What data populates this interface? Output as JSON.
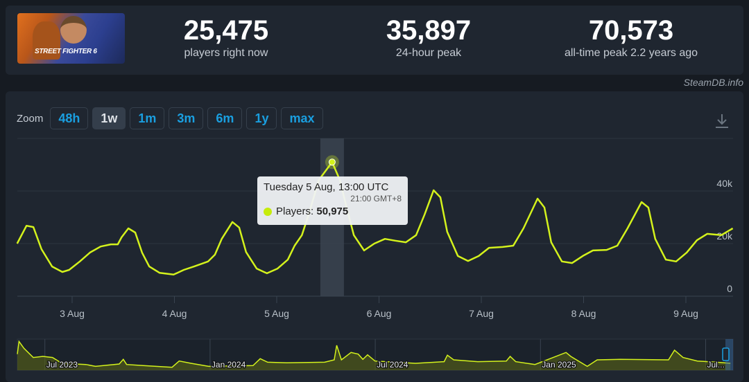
{
  "header": {
    "game_logo_text": "STREET FIGHTER 6",
    "stats": [
      {
        "value": "25,475",
        "label": "players right now"
      },
      {
        "value": "35,897",
        "label": "24-hour peak"
      },
      {
        "value": "70,573",
        "label": "all-time peak 2.2 years ago"
      }
    ]
  },
  "credit": "SteamDB.info",
  "zoom": {
    "label": "Zoom",
    "options": [
      "48h",
      "1w",
      "1m",
      "3m",
      "6m",
      "1y",
      "max"
    ],
    "active": "1w"
  },
  "icons": {
    "download": "download-icon"
  },
  "colors": {
    "line": "#d4f21c",
    "accent": "#1a9fe0",
    "background": "#1f2630"
  },
  "tooltip": {
    "date": "Tuesday 5 Aug, 13:00 UTC",
    "local": "21:00 GMT+8",
    "series": "Players:",
    "value": "50,975"
  },
  "chart_data": {
    "type": "line",
    "title": "",
    "x_unit": "hours since 2 Aug 00:00 UTC",
    "xlim": [
      11,
      179
    ],
    "ylim": [
      0,
      60000
    ],
    "y_ticks": [
      {
        "v": 0,
        "label": "0"
      },
      {
        "v": 20000,
        "label": "20k"
      },
      {
        "v": 40000,
        "label": "40k"
      }
    ],
    "x_ticks": [
      {
        "h": 24,
        "label": "3 Aug"
      },
      {
        "h": 48,
        "label": "4 Aug"
      },
      {
        "h": 72,
        "label": "5 Aug"
      },
      {
        "h": 96,
        "label": "6 Aug"
      },
      {
        "h": 120,
        "label": "7 Aug"
      },
      {
        "h": 144,
        "label": "8 Aug"
      },
      {
        "h": 168,
        "label": "9 Aug"
      }
    ],
    "highlight": {
      "h": 85,
      "value": 50975
    },
    "series": [
      {
        "name": "Players",
        "points": [
          [
            11.1,
            20000
          ],
          [
            13.3,
            26800
          ],
          [
            14.9,
            26300
          ],
          [
            16.8,
            17900
          ],
          [
            19.3,
            11300
          ],
          [
            21.7,
            9200
          ],
          [
            23.3,
            10000
          ],
          [
            25.8,
            13200
          ],
          [
            28.2,
            16600
          ],
          [
            30.7,
            18900
          ],
          [
            33.1,
            19700
          ],
          [
            34.7,
            19700
          ],
          [
            35.6,
            22400
          ],
          [
            37.2,
            25800
          ],
          [
            38.8,
            24200
          ],
          [
            40.4,
            16600
          ],
          [
            42.1,
            11300
          ],
          [
            44.5,
            8900
          ],
          [
            47.8,
            8200
          ],
          [
            50.2,
            10000
          ],
          [
            52.6,
            11300
          ],
          [
            55.9,
            13200
          ],
          [
            57.5,
            15800
          ],
          [
            59.1,
            21800
          ],
          [
            61.6,
            28200
          ],
          [
            63.2,
            26100
          ],
          [
            64.8,
            16800
          ],
          [
            67.3,
            10500
          ],
          [
            69.7,
            8700
          ],
          [
            72.2,
            10500
          ],
          [
            74.6,
            13900
          ],
          [
            76.2,
            19200
          ],
          [
            77.9,
            23200
          ],
          [
            79.5,
            31100
          ],
          [
            81.9,
            44200
          ],
          [
            85,
            50975
          ],
          [
            86.8,
            44200
          ],
          [
            88.4,
            33700
          ],
          [
            90.1,
            23200
          ],
          [
            92.5,
            17400
          ],
          [
            94.9,
            20000
          ],
          [
            97.4,
            21800
          ],
          [
            99.8,
            21100
          ],
          [
            102.3,
            20500
          ],
          [
            104.7,
            23200
          ],
          [
            106.7,
            31100
          ],
          [
            108.8,
            40300
          ],
          [
            110.4,
            37600
          ],
          [
            112,
            24500
          ],
          [
            114.5,
            15300
          ],
          [
            116.9,
            13400
          ],
          [
            119.4,
            15300
          ],
          [
            121.8,
            18400
          ],
          [
            125,
            18700
          ],
          [
            127.5,
            19200
          ],
          [
            129.9,
            25800
          ],
          [
            133.2,
            37100
          ],
          [
            134.8,
            33700
          ],
          [
            136.4,
            20500
          ],
          [
            138.9,
            13200
          ],
          [
            141.3,
            12600
          ],
          [
            143.8,
            15300
          ],
          [
            146.2,
            17400
          ],
          [
            149.4,
            17600
          ],
          [
            151.9,
            19200
          ],
          [
            154.3,
            25800
          ],
          [
            157.6,
            35800
          ],
          [
            159.2,
            33700
          ],
          [
            160.8,
            21800
          ],
          [
            163.3,
            13900
          ],
          [
            165.7,
            13200
          ],
          [
            168.2,
            16600
          ],
          [
            170.6,
            21300
          ],
          [
            173,
            23700
          ],
          [
            176.3,
            23200
          ],
          [
            179,
            25800
          ]
        ]
      }
    ],
    "navigator": {
      "x_unit": "months since Jun 2023",
      "ylim": [
        0,
        70000
      ],
      "ticks": [
        {
          "m": 1,
          "label": "Jul 2023"
        },
        {
          "m": 7,
          "label": "Jan 2024"
        },
        {
          "m": 13,
          "label": "Jul 2024"
        },
        {
          "m": 19,
          "label": "Jan 2025"
        },
        {
          "m": 25,
          "label": "Jul..."
        }
      ],
      "points": [
        [
          0,
          38900
        ],
        [
          0.06,
          69400
        ],
        [
          0.24,
          52800
        ],
        [
          0.58,
          30600
        ],
        [
          0.93,
          33300
        ],
        [
          1.28,
          30600
        ],
        [
          1.62,
          16700
        ],
        [
          2.49,
          13900
        ],
        [
          2.84,
          9400
        ],
        [
          3.7,
          15000
        ],
        [
          3.85,
          26100
        ],
        [
          3.97,
          13900
        ],
        [
          4.57,
          11100
        ],
        [
          5.62,
          7200
        ],
        [
          5.88,
          22200
        ],
        [
          6.31,
          16700
        ],
        [
          6.95,
          9400
        ],
        [
          8.56,
          11100
        ],
        [
          8.82,
          27800
        ],
        [
          9.09,
          19400
        ],
        [
          9.78,
          17800
        ],
        [
          11.16,
          19400
        ],
        [
          11.51,
          25000
        ],
        [
          11.6,
          60000
        ],
        [
          11.77,
          25000
        ],
        [
          12.12,
          42800
        ],
        [
          12.38,
          38900
        ],
        [
          12.55,
          26100
        ],
        [
          12.72,
          37200
        ],
        [
          12.99,
          22200
        ],
        [
          14.46,
          16700
        ],
        [
          15.5,
          20600
        ],
        [
          15.62,
          36100
        ],
        [
          15.85,
          25000
        ],
        [
          16.72,
          20600
        ],
        [
          17.76,
          22200
        ],
        [
          17.9,
          33300
        ],
        [
          18.1,
          20600
        ],
        [
          18.8,
          13900
        ],
        [
          19.93,
          42800
        ],
        [
          20.1,
          33300
        ],
        [
          20.7,
          9400
        ],
        [
          21.06,
          25000
        ],
        [
          21.9,
          26100
        ],
        [
          23.65,
          25000
        ],
        [
          23.87,
          48300
        ],
        [
          24.18,
          30600
        ],
        [
          24.7,
          22200
        ],
        [
          25.4,
          19400
        ],
        [
          25.9,
          16700
        ]
      ]
    }
  }
}
